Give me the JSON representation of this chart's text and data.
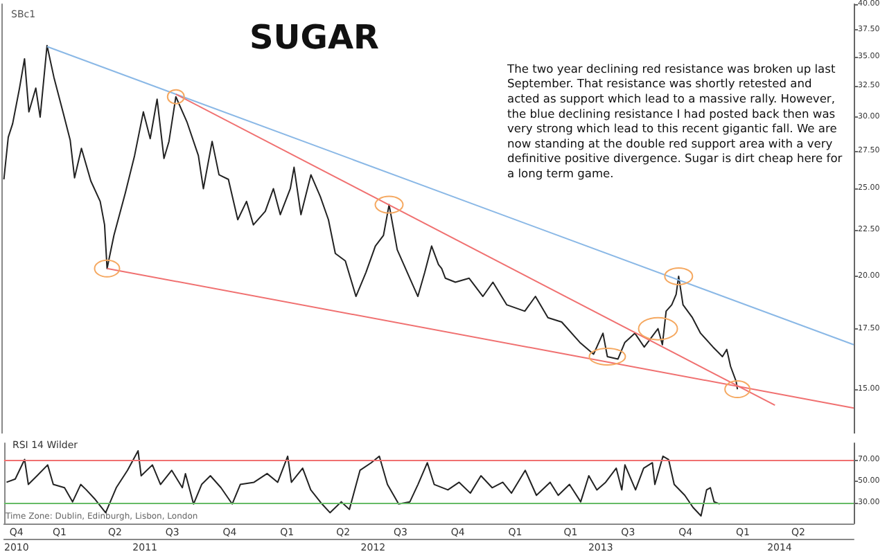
{
  "chart_data": [
    {
      "type": "line",
      "title": "SUGAR",
      "annotations": [
        "SBc1",
        "The two year declining red resistance was broken up last September. That resistance was shortly retested and acted as support which lead to a massive rally. However, the blue declining resistance I had posted back then was very strong which lead to this recent gigantic fall. We are now standing at the double red support area with a very definitive positive divergence. Sugar is dirt cheap here for a long term game."
      ],
      "log": "y",
      "tick_labels": "y",
      "xlim": [
        "2010-11-18",
        "2014-08-12"
      ],
      "ylim": [
        13.4,
        40
      ],
      "yticks": [
        {
          "value": 15,
          "label": "15.00"
        },
        {
          "value": 17.5,
          "label": "17.50"
        },
        {
          "value": 20,
          "label": "20.00"
        },
        {
          "value": 22.5,
          "label": "22.50"
        },
        {
          "value": 25,
          "label": "25.00"
        },
        {
          "value": 27.5,
          "label": "27.50"
        },
        {
          "value": 30,
          "label": "30.00"
        },
        {
          "value": 32.5,
          "label": "32.50"
        },
        {
          "value": 35,
          "label": "35.00"
        },
        {
          "value": 37.5,
          "label": "37.50"
        },
        {
          "value": 40,
          "label": "40.00"
        }
      ],
      "x": [
        "2010-11-22",
        "2010-11-29",
        "2010-12-06",
        "2010-12-17",
        "2010-12-25",
        "2011-01-01",
        "2011-01-12",
        "2011-01-19",
        "2011-01-30",
        "2011-02-10",
        "2011-02-25",
        "2011-03-08",
        "2011-03-15",
        "2011-03-26",
        "2011-04-10",
        "2011-04-25",
        "2011-05-02",
        "2011-05-06",
        "2011-05-17",
        "2011-06-04",
        "2011-06-19",
        "2011-07-03",
        "2011-07-14",
        "2011-07-25",
        "2011-08-05",
        "2011-08-13",
        "2011-08-24",
        "2011-09-11",
        "2011-09-29",
        "2011-10-07",
        "2011-10-21",
        "2011-11-01",
        "2011-11-16",
        "2011-12-01",
        "2011-12-15",
        "2011-12-26",
        "2012-01-14",
        "2012-01-27",
        "2012-02-07",
        "2012-02-23",
        "2012-02-29",
        "2012-03-11",
        "2012-03-27",
        "2012-04-11",
        "2012-04-24",
        "2012-05-05",
        "2012-05-21",
        "2012-06-07",
        "2012-06-23",
        "2012-07-08",
        "2012-07-21",
        "2012-07-30",
        "2012-08-12",
        "2012-08-28",
        "2012-09-14",
        "2012-09-25",
        "2012-10-06",
        "2012-10-17",
        "2012-10-22",
        "2012-10-28",
        "2012-11-13",
        "2012-12-05",
        "2012-12-27",
        "2013-01-12",
        "2013-02-03",
        "2013-03-04",
        "2013-03-21",
        "2013-04-10",
        "2013-05-02",
        "2013-05-31",
        "2013-06-22",
        "2013-07-07",
        "2013-07-14",
        "2013-07-31",
        "2013-08-11",
        "2013-08-27",
        "2013-09-11",
        "2013-10-03",
        "2013-10-10",
        "2013-10-16",
        "2013-10-25",
        "2013-11-01",
        "2013-11-05",
        "2013-11-12",
        "2013-11-27",
        "2013-12-10",
        "2013-12-30",
        "2014-01-14",
        "2014-01-21",
        "2014-01-27",
        "2014-02-05",
        "2014-02-07"
      ],
      "series": [
        {
          "color": "#222222",
          "values": [
            25.6,
            28.5,
            29.5,
            32.3,
            34.8,
            30.4,
            32.3,
            30,
            36,
            33.2,
            30.3,
            28.3,
            25.7,
            27.7,
            25.5,
            24.2,
            22.8,
            20.4,
            22.2,
            24.7,
            27.2,
            30.4,
            28.4,
            31.4,
            27,
            28.2,
            31.6,
            29.6,
            27.2,
            25,
            28.2,
            25.9,
            25.6,
            23.1,
            24.2,
            22.8,
            23.6,
            25,
            23.4,
            25,
            26.4,
            23.4,
            25.9,
            24.5,
            23.1,
            21.2,
            20.8,
            19,
            20.2,
            21.6,
            22.2,
            24,
            21.4,
            20.2,
            19,
            20.2,
            21.6,
            20.6,
            20.4,
            19.9,
            19.7,
            19.9,
            19,
            19.7,
            18.6,
            18.3,
            19,
            18,
            17.8,
            16.9,
            16.4,
            17.3,
            16.3,
            16.2,
            16.9,
            17.3,
            16.7,
            17.5,
            16.8,
            18.3,
            18.6,
            19.1,
            20,
            18.6,
            18,
            17.3,
            16.7,
            16.3,
            16.6,
            15.9,
            15.3,
            15
          ]
        },
        {
          "color": "#8ab8e6",
          "x": [
            "2011-01-30",
            "2014-08-12"
          ],
          "values": [
            35.9,
            16.8
          ]
        },
        {
          "color": "#f07070",
          "x": [
            "2011-08-24",
            "2014-04-08"
          ],
          "values": [
            31.8,
            14.4
          ]
        },
        {
          "color": "#f07070",
          "x": [
            "2011-05-06",
            "2014-08-12"
          ],
          "values": [
            20.4,
            14.3
          ]
        }
      ]
    },
    {
      "type": "line",
      "title": "RSI 14 Wilder",
      "annotations": [
        "Time Zone: Dublin, Edinburgh, Lisbon, London"
      ],
      "xlim": [
        "2010-11-18",
        "2014-08-12"
      ],
      "ylim": [
        11,
        85
      ],
      "yticks": [
        {
          "value": 30,
          "label": "30.00"
        },
        {
          "value": 50,
          "label": "50.00"
        },
        {
          "value": 70,
          "label": "70.00"
        }
      ],
      "xticks": [
        {
          "value": "2010-12-08",
          "label": "Q4"
        },
        {
          "value": "2011-02-15",
          "label": "Q1"
        },
        {
          "value": "2011-05-15",
          "label": "Q2"
        },
        {
          "value": "2011-08-15",
          "label": "Q3"
        },
        {
          "value": "2011-11-15",
          "label": "Q4"
        },
        {
          "value": "2012-02-15",
          "label": "Q1"
        },
        {
          "value": "2012-05-15",
          "label": "Q2"
        },
        {
          "value": "2012-08-15",
          "label": "Q3"
        },
        {
          "value": "2012-11-15",
          "label": "Q4"
        },
        {
          "value": "2013-02-15",
          "label": "Q1"
        },
        {
          "value": "2013-05-15",
          "label": "Q1"
        },
        {
          "value": "2013-08-15",
          "label": "Q3"
        },
        {
          "value": "2013-11-15",
          "label": "Q4"
        },
        {
          "value": "2014-02-15",
          "label": "Q1"
        },
        {
          "value": "2014-05-15",
          "label": "Q2"
        }
      ],
      "x2lim": [
        "2010-11-18",
        "2014-08-12"
      ],
      "x2ticks": [
        {
          "value": "2010-12-08",
          "label": "2010"
        },
        {
          "value": "2011-07-02",
          "label": "2011"
        },
        {
          "value": "2012-07-02",
          "label": "2012"
        },
        {
          "value": "2013-07-02",
          "label": "2013"
        },
        {
          "value": "2014-04-15",
          "label": "2014"
        }
      ],
      "ref_lines": [
        {
          "axis": "y",
          "value": 70,
          "color": "#f07070"
        },
        {
          "axis": "y",
          "value": 30,
          "color": "#66bb66"
        }
      ],
      "x": [
        "2010-11-22",
        "2010-12-06",
        "2010-12-21",
        "2010-12-27",
        "2011-01-10",
        "2011-01-27",
        "2011-02-05",
        "2011-02-23",
        "2011-03-08",
        "2011-03-21",
        "2011-03-30",
        "2011-04-12",
        "2011-04-30",
        "2011-05-17",
        "2011-06-04",
        "2011-06-21",
        "2011-06-26",
        "2011-07-14",
        "2011-07-27",
        "2011-08-14",
        "2011-08-31",
        "2011-09-05",
        "2011-09-18",
        "2011-10-01",
        "2011-10-15",
        "2011-11-01",
        "2011-11-19",
        "2011-12-02",
        "2011-12-24",
        "2012-01-14",
        "2012-01-31",
        "2012-02-16",
        "2012-02-22",
        "2012-03-11",
        "2012-03-24",
        "2012-04-11",
        "2012-04-24",
        "2012-05-12",
        "2012-05-25",
        "2012-06-11",
        "2012-06-29",
        "2012-07-12",
        "2012-07-25",
        "2012-08-12",
        "2012-08-30",
        "2012-09-12",
        "2012-09-27",
        "2012-10-08",
        "2012-10-30",
        "2012-11-17",
        "2012-12-05",
        "2012-12-22",
        "2013-01-09",
        "2013-01-26",
        "2013-02-09",
        "2013-03-03",
        "2013-03-21",
        "2013-04-12",
        "2013-04-25",
        "2013-05-13",
        "2013-05-31",
        "2013-06-13",
        "2013-06-26",
        "2013-07-10",
        "2013-07-27",
        "2013-08-05",
        "2013-08-10",
        "2013-08-27",
        "2013-09-09",
        "2013-09-23",
        "2013-09-27",
        "2013-10-10",
        "2013-10-19",
        "2013-10-28",
        "2013-11-14",
        "2013-11-27",
        "2013-12-10",
        "2013-12-19",
        "2013-12-25",
        "2013-12-31",
        "2014-01-09"
      ],
      "series": [
        {
          "color": "#222222",
          "values": [
            49,
            52,
            70,
            47,
            55,
            65,
            47,
            44,
            31,
            47,
            42,
            34,
            21,
            44,
            60,
            78,
            55,
            65,
            47,
            60,
            44,
            57,
            29,
            47,
            55,
            44,
            29,
            47,
            49,
            57,
            49,
            73,
            49,
            62,
            42,
            29,
            21,
            31,
            24,
            60,
            67,
            73,
            47,
            29,
            31,
            47,
            67,
            47,
            42,
            49,
            39,
            55,
            44,
            49,
            39,
            60,
            37,
            49,
            37,
            47,
            31,
            55,
            42,
            49,
            62,
            42,
            65,
            42,
            62,
            67,
            47,
            73,
            70,
            47,
            37,
            26,
            18,
            42,
            44,
            31,
            29
          ]
        }
      ]
    }
  ]
}
